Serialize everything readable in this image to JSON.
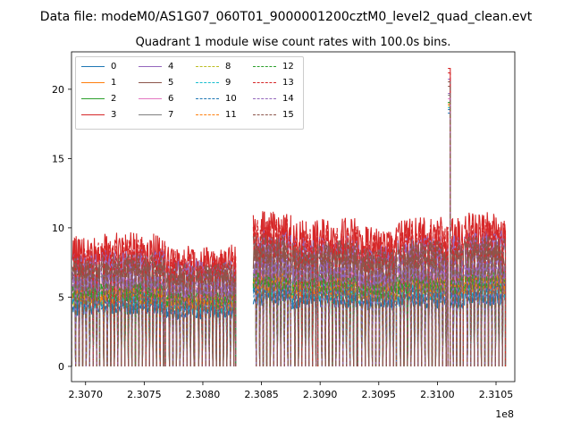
{
  "chart_data": {
    "type": "line",
    "suptitle": "Data file: modeM0/AS1G07_060T01_9000001200cztM0_level2_quad_clean.evt",
    "title": "Quadrant 1 module wise count rates with 100.0s bins.",
    "xlabel": "",
    "ylabel": "",
    "x_offset_label": "1e8",
    "xlim": [
      230688000.0,
      231066000.0
    ],
    "ylim": [
      -1.1,
      22.7
    ],
    "x_ticks": [
      230700000.0,
      230750000.0,
      230800000.0,
      230850000.0,
      230900000.0,
      230950000.0,
      231000000.0,
      231050000.0
    ],
    "x_tick_labels": [
      "2.3070",
      "2.3075",
      "2.3080",
      "2.3085",
      "2.3090",
      "2.3095",
      "2.3100",
      "2.3105"
    ],
    "y_ticks": [
      0,
      5,
      10,
      15,
      20
    ],
    "y_tick_labels": [
      "0",
      "5",
      "10",
      "15",
      "20"
    ],
    "legend": {
      "placement": "top-left",
      "columns": 4
    },
    "segments": [
      {
        "x": [
          230686000.0,
          230688000.0
        ],
        "level": 7.5
      },
      {
        "x": [
          230689000.0,
          230712000.0
        ],
        "level": 8.6
      },
      {
        "x": [
          230713000.0,
          230768000.0
        ],
        "level": 8.8
      },
      {
        "x": [
          230769000.0,
          230793000.0
        ],
        "level": 8.0
      },
      {
        "x": [
          230794000.0,
          230828000.0
        ],
        "level": 8.0
      },
      {
        "x": [
          230843000.0,
          230875000.0
        ],
        "level": 10.2
      },
      {
        "x": [
          230876000.0,
          230898000.0
        ],
        "level": 9.6
      },
      {
        "x": [
          230899000.0,
          230932000.0
        ],
        "level": 9.8
      },
      {
        "x": [
          230933000.0,
          230965000.0
        ],
        "level": 9.2
      },
      {
        "x": [
          230966000.0,
          231009000.0
        ],
        "level": 9.8
      },
      {
        "x": [
          231009000.0,
          231011000.0
        ],
        "level": 21.5
      },
      {
        "x": [
          231011000.0,
          231022000.0
        ],
        "level": 9.8
      },
      {
        "x": [
          231023000.0,
          231058000.0
        ],
        "level": 10.2
      }
    ],
    "series": [
      {
        "name": "0",
        "color": "#1f77b4",
        "dash": "solid",
        "scale": 0.5
      },
      {
        "name": "1",
        "color": "#ff7f0e",
        "dash": "solid",
        "scale": 0.6
      },
      {
        "name": "2",
        "color": "#2ca02c",
        "dash": "solid",
        "scale": 0.62
      },
      {
        "name": "3",
        "color": "#d62728",
        "dash": "solid",
        "scale": 1.0
      },
      {
        "name": "4",
        "color": "#9467bd",
        "dash": "solid",
        "scale": 0.88
      },
      {
        "name": "5",
        "color": "#8c564b",
        "dash": "solid",
        "scale": 0.8
      },
      {
        "name": "6",
        "color": "#e377c2",
        "dash": "solid",
        "scale": 0.66
      },
      {
        "name": "7",
        "color": "#7f7f7f",
        "dash": "solid",
        "scale": 0.7
      },
      {
        "name": "8",
        "color": "#bcbd22",
        "dash": "dashed",
        "scale": 0.58
      },
      {
        "name": "9",
        "color": "#17becf",
        "dash": "dashed",
        "scale": 0.56
      },
      {
        "name": "10",
        "color": "#1f77b4",
        "dash": "dashed",
        "scale": 0.54
      },
      {
        "name": "11",
        "color": "#ff7f0e",
        "dash": "dashed",
        "scale": 0.6
      },
      {
        "name": "12",
        "color": "#2ca02c",
        "dash": "dashed",
        "scale": 0.62
      },
      {
        "name": "13",
        "color": "#d62728",
        "dash": "dashed",
        "scale": 0.95
      },
      {
        "name": "14",
        "color": "#9467bd",
        "dash": "dashed",
        "scale": 0.72
      },
      {
        "name": "15",
        "color": "#8c564b",
        "dash": "dashed",
        "scale": 0.85
      }
    ]
  }
}
